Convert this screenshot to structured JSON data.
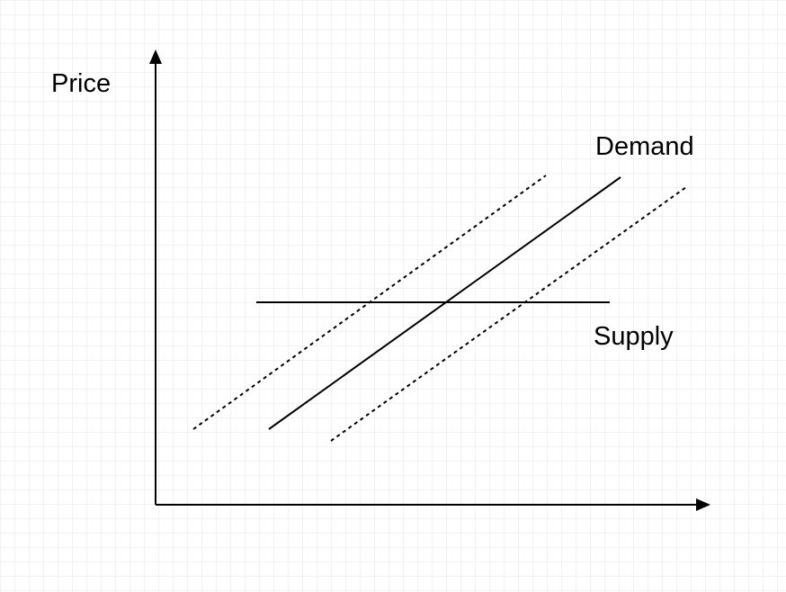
{
  "diagram": {
    "y_axis_label": "Price",
    "demand_label": "Demand",
    "supply_label": "Supply"
  },
  "colors": {
    "background": "#ffffff",
    "grid": "#e6e6e6",
    "stroke": "#000000"
  }
}
